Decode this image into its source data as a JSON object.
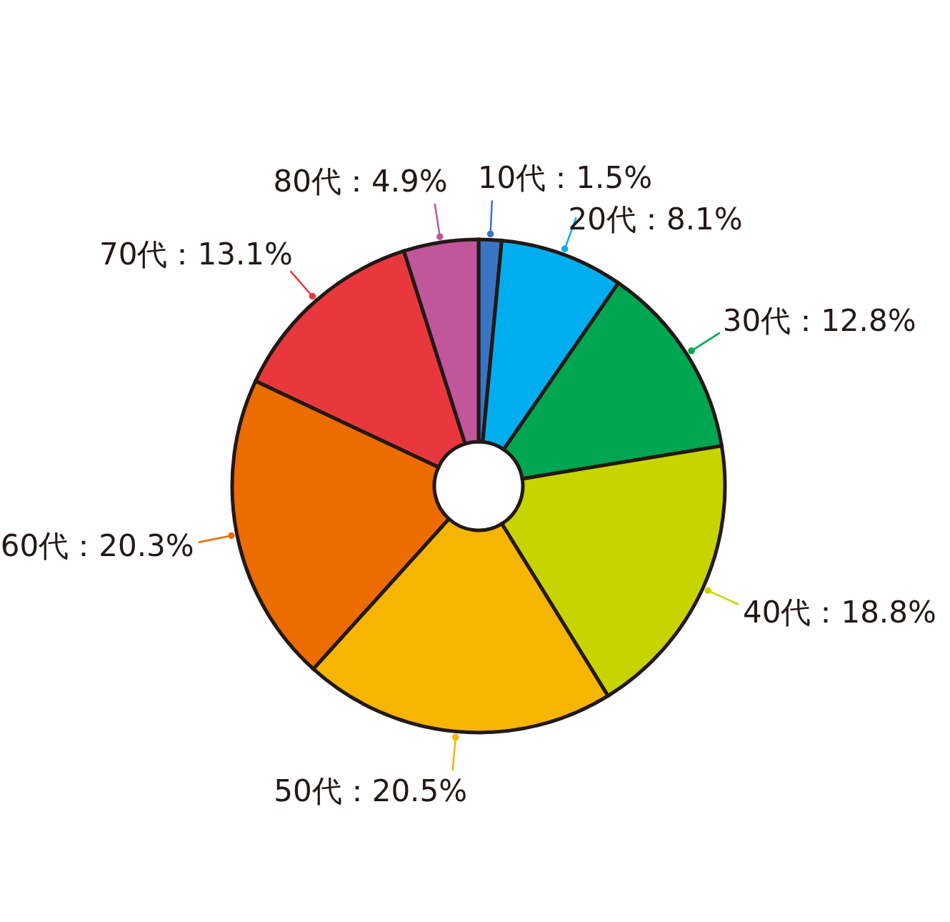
{
  "chart_data": {
    "type": "donut",
    "categories": [
      "10代",
      "20代",
      "30代",
      "40代",
      "50代",
      "60代",
      "70代",
      "80代"
    ],
    "values": [
      1.5,
      8.1,
      12.8,
      18.8,
      20.5,
      20.3,
      13.1,
      4.9
    ],
    "colors": [
      "#3a75c4",
      "#00aeef",
      "#00a651",
      "#c8d400",
      "#f6b500",
      "#ec6c00",
      "#e8383d",
      "#c0569c"
    ],
    "value_labels": [
      "：1.5%",
      "：8.1%",
      "：12.8%",
      "：18.8%",
      "：20.5%",
      "：20.3%",
      "：13.1%",
      "：4.9%"
    ]
  }
}
